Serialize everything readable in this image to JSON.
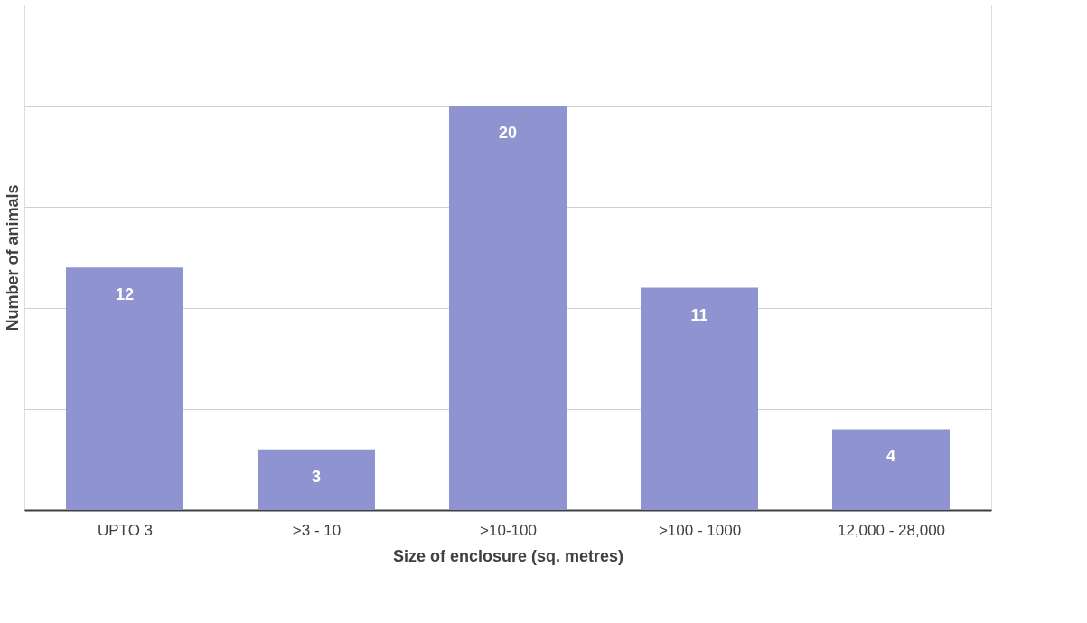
{
  "chart_data": {
    "type": "bar",
    "xlabel": "Size of enclosure (sq. metres)",
    "ylabel": "Number of animals",
    "categories": [
      "UPTO 3",
      ">3 - 10",
      ">10-100",
      ">100 - 1000",
      "12,000 - 28,000"
    ],
    "values": [
      12,
      3,
      20,
      11,
      4
    ],
    "color": "#8f94d0",
    "ylim": [
      0,
      25
    ],
    "yticks": [
      {
        "value": 0,
        "label": null
      },
      {
        "value": 5,
        "label": null
      },
      {
        "value": 10,
        "label": null
      },
      {
        "value": 15,
        "label": null
      },
      {
        "value": 20,
        "label": null
      },
      {
        "value": 25,
        "label": null
      }
    ],
    "tick_labels": "x",
    "grid": "y",
    "data_labels": true
  }
}
